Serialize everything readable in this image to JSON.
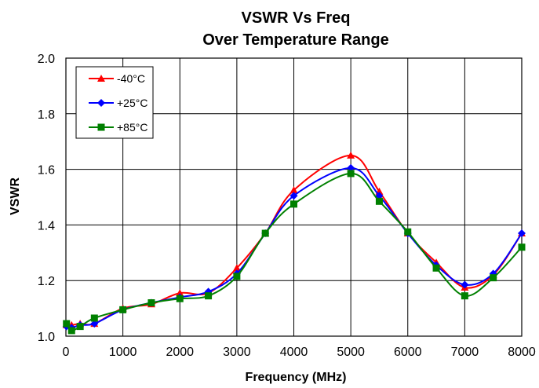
{
  "chart_data": {
    "type": "line",
    "title": [
      "VSWR Vs Freq",
      "Over Temperature Range"
    ],
    "xlabel": "Frequency (MHz)",
    "ylabel": "VSWR",
    "xlim": [
      0,
      8000
    ],
    "ylim": [
      1.0,
      2.0
    ],
    "xticks": [
      0,
      1000,
      2000,
      3000,
      4000,
      5000,
      6000,
      7000,
      8000
    ],
    "yticks": [
      1.0,
      1.2,
      1.4,
      1.6,
      1.8,
      2.0
    ],
    "ytick_labels": [
      "1.0",
      "1.2",
      "1.4",
      "1.6",
      "1.8",
      "2.0"
    ],
    "grid": true,
    "legend_position": "top-left",
    "x": [
      10,
      100,
      250,
      500,
      1000,
      1500,
      2000,
      2500,
      3000,
      3500,
      4000,
      5000,
      5500,
      6000,
      6500,
      7000,
      7500,
      8000
    ],
    "series": [
      {
        "name": "-40°C",
        "color": "#ff0000",
        "marker": "triangle",
        "values": [
          1.04,
          1.04,
          1.045,
          1.045,
          1.1,
          1.115,
          1.155,
          1.155,
          1.245,
          1.37,
          1.525,
          1.65,
          1.52,
          1.37,
          1.265,
          1.175,
          1.22,
          1.37
        ]
      },
      {
        "name": "+25°C",
        "color": "#0000ff",
        "marker": "diamond",
        "values": [
          1.035,
          1.03,
          1.04,
          1.045,
          1.095,
          1.12,
          1.14,
          1.16,
          1.225,
          1.37,
          1.505,
          1.605,
          1.505,
          1.37,
          1.255,
          1.185,
          1.225,
          1.37
        ]
      },
      {
        "name": "+85°C",
        "color": "#008000",
        "marker": "square",
        "values": [
          1.045,
          1.02,
          1.035,
          1.065,
          1.095,
          1.12,
          1.135,
          1.145,
          1.215,
          1.37,
          1.475,
          1.585,
          1.485,
          1.375,
          1.245,
          1.145,
          1.21,
          1.32
        ]
      }
    ]
  }
}
